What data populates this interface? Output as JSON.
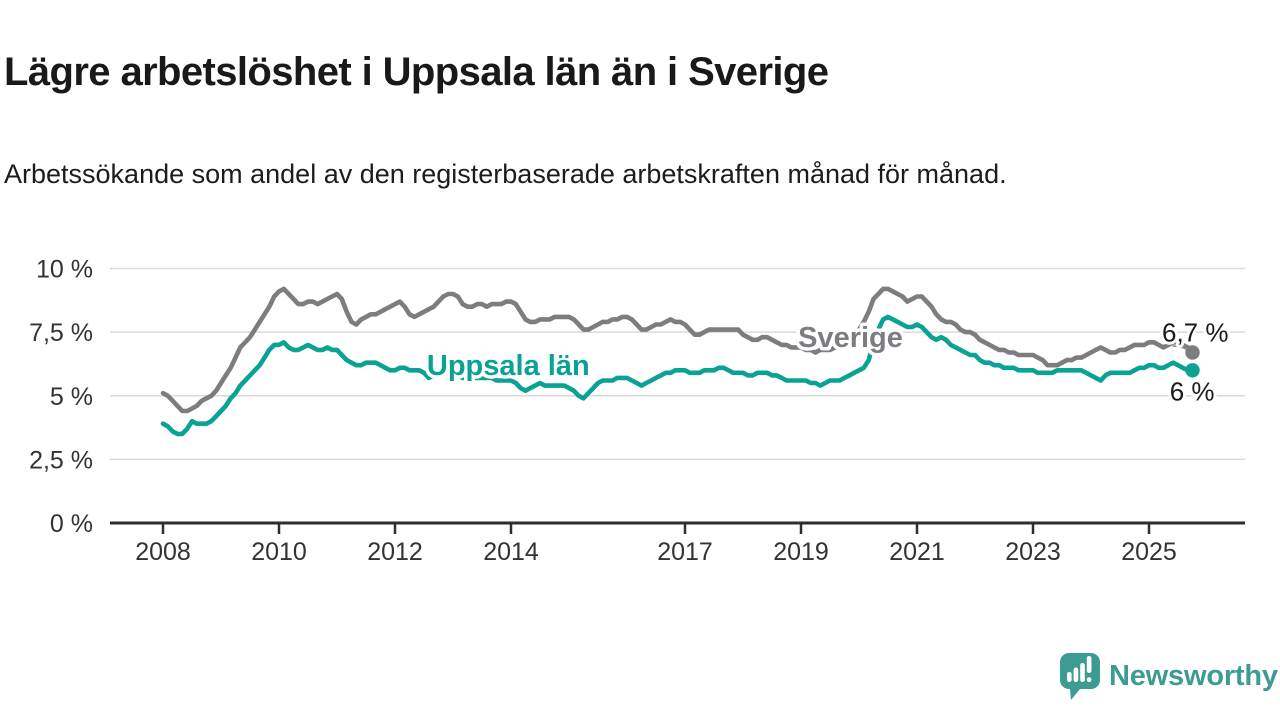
{
  "header": {
    "title": "Lägre arbetslöshet i Uppsala län än i Sverige",
    "subtitle": "Arbetssökande som andel av den registerbaserade arbetskraften månad för månad."
  },
  "branding": {
    "logo_text": "Newsworthy",
    "logo_icon": "bar-chart-exclamation-speech-bubble",
    "logo_color": "#3d9c92"
  },
  "colors": {
    "sweden_line": "#7d7d81",
    "uppsala_line": "#0aa294",
    "axis": "#2e2e2e",
    "grid": "#d9d9d9",
    "tick_text": "#333333",
    "end_label_text": "#1a1a1a",
    "background": "#ffffff"
  },
  "chart_data": {
    "type": "line",
    "x_unit": "month",
    "x_start": {
      "year": 2008,
      "month": 1
    },
    "x_end": {
      "year": 2025,
      "month": 10
    },
    "x_ticks": [
      2008,
      2010,
      2012,
      2014,
      2017,
      2019,
      2021,
      2023,
      2025
    ],
    "y_ticks": [
      {
        "value": 0,
        "label": "0 %"
      },
      {
        "value": 2.5,
        "label": "2,5 %"
      },
      {
        "value": 5,
        "label": "5 %"
      },
      {
        "value": 7.5,
        "label": "7,5 %"
      },
      {
        "value": 10,
        "label": "10 %"
      }
    ],
    "ylim": [
      0,
      10.9
    ],
    "grid": "horizontal",
    "legend_position": "inline-labels",
    "series": [
      {
        "name": "Sverige",
        "color": "#7d7d81",
        "end_label": "6,7 %",
        "last_value": 6.7,
        "label_pos": {
          "year": 2018.95,
          "value": 6.92
        },
        "values": [
          5.1,
          5.0,
          4.8,
          4.6,
          4.4,
          4.4,
          4.5,
          4.6,
          4.8,
          4.9,
          5.0,
          5.2,
          5.5,
          5.8,
          6.1,
          6.5,
          6.9,
          7.1,
          7.3,
          7.6,
          7.9,
          8.2,
          8.5,
          8.9,
          9.1,
          9.2,
          9.0,
          8.8,
          8.6,
          8.6,
          8.7,
          8.7,
          8.6,
          8.7,
          8.8,
          8.9,
          9.0,
          8.8,
          8.3,
          7.9,
          7.8,
          8.0,
          8.1,
          8.2,
          8.2,
          8.3,
          8.4,
          8.5,
          8.6,
          8.7,
          8.5,
          8.2,
          8.1,
          8.2,
          8.3,
          8.4,
          8.5,
          8.7,
          8.9,
          9.0,
          9.0,
          8.9,
          8.6,
          8.5,
          8.5,
          8.6,
          8.6,
          8.5,
          8.6,
          8.6,
          8.6,
          8.7,
          8.7,
          8.6,
          8.3,
          8.0,
          7.9,
          7.9,
          8.0,
          8.0,
          8.0,
          8.1,
          8.1,
          8.1,
          8.1,
          8.0,
          7.8,
          7.6,
          7.6,
          7.7,
          7.8,
          7.9,
          7.9,
          8.0,
          8.0,
          8.1,
          8.1,
          8.0,
          7.8,
          7.6,
          7.6,
          7.7,
          7.8,
          7.8,
          7.9,
          8.0,
          7.9,
          7.9,
          7.8,
          7.6,
          7.4,
          7.4,
          7.5,
          7.6,
          7.6,
          7.6,
          7.6,
          7.6,
          7.6,
          7.6,
          7.4,
          7.3,
          7.2,
          7.2,
          7.3,
          7.3,
          7.2,
          7.1,
          7.0,
          7.0,
          6.9,
          6.9,
          6.9,
          6.8,
          6.8,
          6.7,
          6.8,
          6.8,
          6.8,
          6.9,
          6.9,
          7.0,
          7.2,
          7.4,
          7.6,
          7.9,
          8.3,
          8.8,
          9.0,
          9.2,
          9.2,
          9.1,
          9.0,
          8.9,
          8.7,
          8.8,
          8.9,
          8.9,
          8.7,
          8.5,
          8.2,
          8.0,
          7.9,
          7.9,
          7.8,
          7.6,
          7.5,
          7.5,
          7.4,
          7.2,
          7.1,
          7.0,
          6.9,
          6.8,
          6.8,
          6.7,
          6.7,
          6.6,
          6.6,
          6.6,
          6.6,
          6.5,
          6.4,
          6.2,
          6.2,
          6.2,
          6.3,
          6.4,
          6.4,
          6.5,
          6.5,
          6.6,
          6.7,
          6.8,
          6.9,
          6.8,
          6.7,
          6.7,
          6.8,
          6.8,
          6.9,
          7.0,
          7.0,
          7.0,
          7.1,
          7.1,
          7.0,
          6.9,
          7.0,
          7.1,
          7.1,
          7.0,
          6.9,
          6.7
        ]
      },
      {
        "name": "Uppsala län",
        "color": "#0aa294",
        "end_label": "6 %",
        "last_value": 6.0,
        "label_pos": {
          "year": 2012.55,
          "value": 5.81
        },
        "values": [
          3.9,
          3.8,
          3.6,
          3.5,
          3.5,
          3.7,
          4.0,
          3.9,
          3.9,
          3.9,
          4.0,
          4.2,
          4.4,
          4.6,
          4.9,
          5.1,
          5.4,
          5.6,
          5.8,
          6.0,
          6.2,
          6.5,
          6.8,
          7.0,
          7.0,
          7.1,
          6.9,
          6.8,
          6.8,
          6.9,
          7.0,
          6.9,
          6.8,
          6.8,
          6.9,
          6.8,
          6.8,
          6.6,
          6.4,
          6.3,
          6.2,
          6.2,
          6.3,
          6.3,
          6.3,
          6.2,
          6.1,
          6.0,
          6.0,
          6.1,
          6.1,
          6.0,
          6.0,
          6.0,
          5.9,
          5.7,
          5.8,
          5.8,
          5.9,
          5.9,
          5.9,
          5.8,
          5.7,
          5.7,
          5.7,
          5.7,
          5.7,
          5.7,
          5.7,
          5.6,
          5.6,
          5.6,
          5.6,
          5.5,
          5.3,
          5.2,
          5.3,
          5.4,
          5.5,
          5.4,
          5.4,
          5.4,
          5.4,
          5.4,
          5.3,
          5.2,
          5.0,
          4.9,
          5.1,
          5.3,
          5.5,
          5.6,
          5.6,
          5.6,
          5.7,
          5.7,
          5.7,
          5.6,
          5.5,
          5.4,
          5.5,
          5.6,
          5.7,
          5.8,
          5.9,
          5.9,
          6.0,
          6.0,
          6.0,
          5.9,
          5.9,
          5.9,
          6.0,
          6.0,
          6.0,
          6.1,
          6.1,
          6.0,
          5.9,
          5.9,
          5.9,
          5.8,
          5.8,
          5.9,
          5.9,
          5.9,
          5.8,
          5.8,
          5.7,
          5.6,
          5.6,
          5.6,
          5.6,
          5.6,
          5.5,
          5.5,
          5.4,
          5.5,
          5.6,
          5.6,
          5.6,
          5.7,
          5.8,
          5.9,
          6.0,
          6.1,
          6.4,
          7.1,
          7.6,
          8.0,
          8.1,
          8.0,
          7.9,
          7.8,
          7.7,
          7.7,
          7.8,
          7.7,
          7.5,
          7.3,
          7.2,
          7.3,
          7.2,
          7.0,
          6.9,
          6.8,
          6.7,
          6.6,
          6.6,
          6.4,
          6.3,
          6.3,
          6.2,
          6.2,
          6.1,
          6.1,
          6.1,
          6.0,
          6.0,
          6.0,
          6.0,
          5.9,
          5.9,
          5.9,
          5.9,
          6.0,
          6.0,
          6.0,
          6.0,
          6.0,
          6.0,
          5.9,
          5.8,
          5.7,
          5.6,
          5.8,
          5.9,
          5.9,
          5.9,
          5.9,
          5.9,
          6.0,
          6.1,
          6.1,
          6.2,
          6.2,
          6.1,
          6.1,
          6.2,
          6.3,
          6.2,
          6.1,
          6.0,
          6.0
        ]
      }
    ]
  }
}
